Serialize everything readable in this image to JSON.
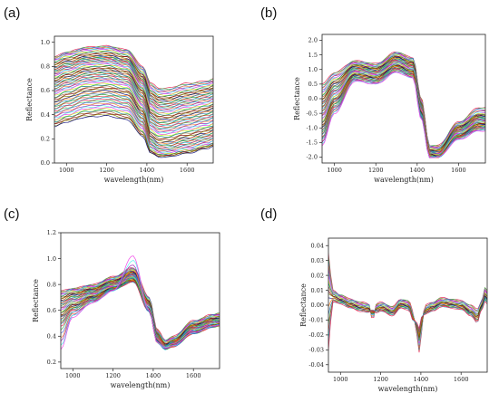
{
  "panels": [
    {
      "label": "(a)"
    },
    {
      "label": "(b)"
    },
    {
      "label": "(c)"
    },
    {
      "label": "(d)"
    }
  ],
  "colors": [
    "#e6194b",
    "#3cb44b",
    "#4363d8",
    "#f58231",
    "#911eb4",
    "#46f0f0",
    "#f032e6",
    "#bcf60c",
    "#008080",
    "#9a6324",
    "#800000",
    "#808000",
    "#000075",
    "#ff7f0e",
    "#1f77b4",
    "#2ca02c",
    "#d62728",
    "#17becf"
  ],
  "chart_data": [
    {
      "type": "line",
      "xlabel": "wavelength(nm)",
      "ylabel": "Reflectance",
      "xlim": [
        940,
        1730
      ],
      "ylim": [
        0.0,
        1.05
      ],
      "xticks": [
        1000,
        1200,
        1400,
        1600
      ],
      "yticks": [
        0.0,
        0.2,
        0.4,
        0.6,
        0.8,
        1.0
      ],
      "ytick_labels": [
        "0.0",
        "0.2",
        "0.4",
        "0.6",
        "0.8",
        "1.0"
      ],
      "x": [
        940,
        1000,
        1100,
        1200,
        1300,
        1380,
        1420,
        1460,
        1500,
        1600,
        1700,
        1730
      ],
      "series": [
        {
          "values": [
            0.88,
            0.92,
            0.96,
            0.97,
            0.94,
            0.8,
            0.66,
            0.62,
            0.62,
            0.66,
            0.68,
            0.7
          ]
        },
        {
          "values": [
            0.85,
            0.89,
            0.93,
            0.94,
            0.91,
            0.76,
            0.61,
            0.57,
            0.57,
            0.61,
            0.64,
            0.66
          ]
        },
        {
          "values": [
            0.8,
            0.84,
            0.88,
            0.89,
            0.86,
            0.71,
            0.56,
            0.52,
            0.52,
            0.56,
            0.59,
            0.61
          ]
        },
        {
          "values": [
            0.76,
            0.8,
            0.85,
            0.86,
            0.83,
            0.67,
            0.51,
            0.47,
            0.47,
            0.51,
            0.54,
            0.56
          ]
        },
        {
          "values": [
            0.72,
            0.76,
            0.81,
            0.82,
            0.79,
            0.63,
            0.46,
            0.42,
            0.42,
            0.46,
            0.49,
            0.51
          ]
        },
        {
          "values": [
            0.67,
            0.71,
            0.76,
            0.77,
            0.74,
            0.58,
            0.4,
            0.36,
            0.36,
            0.4,
            0.43,
            0.45
          ]
        },
        {
          "values": [
            0.62,
            0.66,
            0.71,
            0.72,
            0.69,
            0.52,
            0.34,
            0.3,
            0.3,
            0.34,
            0.37,
            0.39
          ]
        },
        {
          "values": [
            0.57,
            0.61,
            0.66,
            0.67,
            0.64,
            0.47,
            0.28,
            0.24,
            0.24,
            0.28,
            0.31,
            0.33
          ]
        },
        {
          "values": [
            0.5,
            0.54,
            0.59,
            0.6,
            0.57,
            0.41,
            0.21,
            0.17,
            0.17,
            0.21,
            0.25,
            0.27
          ]
        },
        {
          "values": [
            0.43,
            0.47,
            0.52,
            0.53,
            0.5,
            0.34,
            0.16,
            0.12,
            0.12,
            0.16,
            0.2,
            0.22
          ]
        },
        {
          "values": [
            0.36,
            0.4,
            0.45,
            0.46,
            0.43,
            0.28,
            0.11,
            0.08,
            0.08,
            0.11,
            0.15,
            0.17
          ]
        },
        {
          "values": [
            0.3,
            0.34,
            0.38,
            0.39,
            0.36,
            0.22,
            0.08,
            0.05,
            0.05,
            0.08,
            0.12,
            0.14
          ]
        }
      ]
    },
    {
      "type": "line",
      "xlabel": "wavelength(nm)",
      "ylabel": "Reflectance",
      "xlim": [
        940,
        1730
      ],
      "ylim": [
        -2.2,
        2.2
      ],
      "xticks": [
        1000,
        1200,
        1400,
        1600
      ],
      "yticks": [
        -2.0,
        -1.5,
        -1.0,
        -0.5,
        0.0,
        0.5,
        1.0,
        1.5,
        2.0
      ],
      "ytick_labels": [
        "-2.0",
        "-1.5",
        "-1.0",
        "-0.5",
        "0.0",
        "0.5",
        "1.0",
        "1.5",
        "2.0"
      ],
      "x": [
        940,
        1000,
        1100,
        1200,
        1300,
        1380,
        1420,
        1460,
        1500,
        1600,
        1700,
        1730
      ],
      "series": [
        {
          "values": [
            0.5,
            0.9,
            1.3,
            1.2,
            1.6,
            1.4,
            0.0,
            -1.6,
            -1.6,
            -0.8,
            -0.3,
            -0.3
          ]
        },
        {
          "values": [
            0.2,
            0.7,
            1.2,
            1.1,
            1.5,
            1.3,
            -0.1,
            -1.7,
            -1.7,
            -0.9,
            -0.5,
            -0.5
          ]
        },
        {
          "values": [
            -0.1,
            0.5,
            1.1,
            1.0,
            1.4,
            1.2,
            -0.2,
            -1.8,
            -1.8,
            -1.0,
            -0.6,
            -0.6
          ]
        },
        {
          "values": [
            -0.4,
            0.3,
            1.0,
            0.9,
            1.3,
            1.1,
            -0.3,
            -1.8,
            -1.9,
            -1.1,
            -0.7,
            -0.7
          ]
        },
        {
          "values": [
            -0.7,
            0.1,
            0.9,
            0.8,
            1.2,
            1.0,
            -0.4,
            -1.9,
            -1.9,
            -1.2,
            -0.8,
            -0.8
          ]
        },
        {
          "values": [
            -1.0,
            -0.1,
            0.8,
            0.7,
            1.1,
            0.9,
            -0.5,
            -1.9,
            -2.0,
            -1.3,
            -0.9,
            -0.9
          ]
        },
        {
          "values": [
            -1.3,
            -0.3,
            0.7,
            0.6,
            1.0,
            0.8,
            -0.6,
            -2.0,
            -2.0,
            -1.3,
            -1.0,
            -1.0
          ]
        },
        {
          "values": [
            -1.6,
            -0.5,
            0.6,
            0.5,
            0.9,
            0.7,
            -0.7,
            -2.0,
            -2.0,
            -1.4,
            -1.1,
            -1.1
          ]
        }
      ]
    },
    {
      "type": "line",
      "xlabel": "wavelength(nm)",
      "ylabel": "Reflectance",
      "xlim": [
        940,
        1730
      ],
      "ylim": [
        0.15,
        1.2
      ],
      "xticks": [
        1000,
        1200,
        1400,
        1600
      ],
      "yticks": [
        0.2,
        0.4,
        0.6,
        0.8,
        1.0,
        1.2
      ],
      "ytick_labels": [
        "0.2",
        "0.4",
        "0.6",
        "0.8",
        "1.0",
        "1.2"
      ],
      "x": [
        940,
        1000,
        1100,
        1200,
        1300,
        1380,
        1420,
        1460,
        1500,
        1600,
        1700,
        1730
      ],
      "series": [
        {
          "values": [
            0.75,
            0.77,
            0.8,
            0.86,
            0.93,
            0.7,
            0.45,
            0.37,
            0.4,
            0.52,
            0.57,
            0.58
          ]
        },
        {
          "values": [
            0.72,
            0.75,
            0.78,
            0.84,
            0.91,
            0.68,
            0.43,
            0.35,
            0.38,
            0.5,
            0.55,
            0.56
          ]
        },
        {
          "values": [
            0.68,
            0.72,
            0.76,
            0.82,
            0.89,
            0.66,
            0.41,
            0.33,
            0.36,
            0.48,
            0.53,
            0.54
          ]
        },
        {
          "values": [
            0.64,
            0.69,
            0.74,
            0.8,
            0.87,
            0.64,
            0.39,
            0.32,
            0.35,
            0.46,
            0.51,
            0.52
          ]
        },
        {
          "values": [
            0.6,
            0.66,
            0.72,
            0.78,
            0.85,
            0.62,
            0.37,
            0.31,
            0.34,
            0.44,
            0.49,
            0.5
          ]
        },
        {
          "values": [
            0.55,
            0.63,
            0.7,
            0.77,
            0.83,
            0.6,
            0.36,
            0.3,
            0.33,
            0.43,
            0.48,
            0.49
          ]
        },
        {
          "values": [
            0.48,
            0.6,
            0.68,
            0.76,
            0.82,
            0.59,
            0.35,
            0.3,
            0.32,
            0.42,
            0.47,
            0.48
          ]
        },
        {
          "values": [
            0.3,
            0.55,
            0.66,
            0.75,
            1.02,
            0.6,
            0.35,
            0.31,
            0.33,
            0.43,
            0.48,
            0.49
          ]
        }
      ]
    },
    {
      "type": "line",
      "xlabel": "wavelength(nm)",
      "ylabel": "Reflectance",
      "xlim": [
        940,
        1730
      ],
      "ylim": [
        -0.045,
        0.045
      ],
      "xticks": [
        1000,
        1200,
        1400,
        1600
      ],
      "yticks": [
        -0.04,
        -0.03,
        -0.02,
        -0.01,
        0.0,
        0.01,
        0.02,
        0.03,
        0.04
      ],
      "ytick_labels": [
        "-0.04",
        "-0.03",
        "-0.02",
        "-0.01",
        "0.00",
        "0.01",
        "0.02",
        "0.03",
        "0.04"
      ],
      "x": [
        940,
        960,
        1000,
        1050,
        1100,
        1140,
        1160,
        1180,
        1200,
        1260,
        1300,
        1340,
        1360,
        1380,
        1390,
        1400,
        1420,
        1460,
        1500,
        1560,
        1600,
        1650,
        1680,
        1700,
        1720,
        1730
      ],
      "series": [
        {
          "values": [
            0.035,
            0.01,
            0.007,
            0.004,
            0.002,
            0.001,
            -0.01,
            0.001,
            0.002,
            -0.001,
            0.004,
            0.003,
            -0.004,
            -0.02,
            -0.032,
            -0.02,
            0.0,
            0.002,
            0.005,
            0.004,
            0.003,
            0.0,
            -0.003,
            0.002,
            0.012,
            0.01
          ]
        },
        {
          "values": [
            0.02,
            0.008,
            0.005,
            0.002,
            0.0,
            -0.001,
            -0.007,
            -0.001,
            0.0,
            -0.003,
            0.002,
            0.001,
            -0.006,
            -0.017,
            -0.026,
            -0.016,
            -0.002,
            0.0,
            0.003,
            0.002,
            0.001,
            -0.003,
            -0.006,
            0.0,
            0.009,
            0.007
          ]
        },
        {
          "values": [
            0.005,
            0.005,
            0.003,
            0.0,
            -0.002,
            -0.003,
            -0.005,
            -0.003,
            -0.002,
            -0.005,
            0.0,
            -0.001,
            -0.008,
            -0.014,
            -0.02,
            -0.012,
            -0.004,
            -0.002,
            0.001,
            0.0,
            -0.001,
            -0.005,
            -0.009,
            -0.002,
            0.006,
            0.004
          ]
        },
        {
          "values": [
            -0.03,
            0.002,
            0.001,
            -0.002,
            -0.004,
            -0.005,
            -0.003,
            -0.005,
            -0.004,
            -0.007,
            -0.002,
            -0.003,
            -0.01,
            -0.012,
            -0.016,
            -0.008,
            -0.006,
            -0.004,
            -0.001,
            -0.002,
            -0.003,
            -0.007,
            -0.012,
            -0.004,
            0.003,
            0.001
          ]
        }
      ]
    }
  ]
}
